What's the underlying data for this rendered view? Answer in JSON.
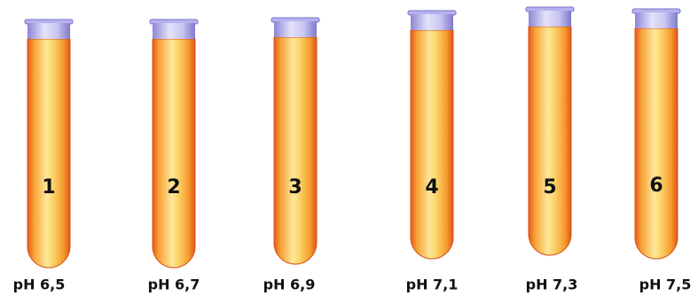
{
  "tubes": [
    {
      "number": "1",
      "label": "pH 6,5"
    },
    {
      "number": "2",
      "label": "pH 6,7"
    },
    {
      "number": "3",
      "label": "pH 6,9"
    },
    {
      "number": "4",
      "label": "pH 7,1"
    },
    {
      "number": "5",
      "label": "pH 7,3"
    },
    {
      "number": "6",
      "label": "pH 7,5"
    }
  ]
}
